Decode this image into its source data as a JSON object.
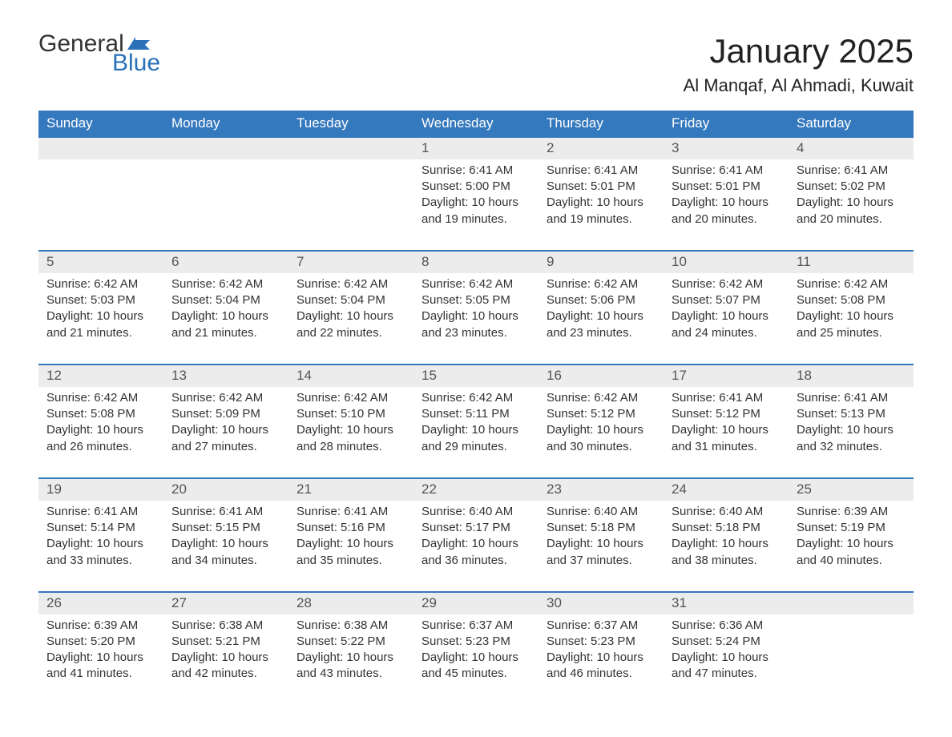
{
  "logo": {
    "word1": "General",
    "word2": "Blue",
    "accent_color": "#2a71b8"
  },
  "title": "January 2025",
  "location": "Al Manqaf, Al Ahmadi, Kuwait",
  "colors": {
    "header_bg": "#3478bd",
    "header_text": "#ffffff",
    "row_stripe": "#ececec",
    "row_border": "#3478bd",
    "body_text": "#333333",
    "background": "#ffffff"
  },
  "typography": {
    "title_fontsize": 42,
    "location_fontsize": 22,
    "dayheader_fontsize": 17,
    "daynum_fontsize": 17,
    "cell_fontsize": 15
  },
  "day_headers": [
    "Sunday",
    "Monday",
    "Tuesday",
    "Wednesday",
    "Thursday",
    "Friday",
    "Saturday"
  ],
  "weeks": [
    [
      null,
      null,
      null,
      {
        "n": "1",
        "sr": "6:41 AM",
        "ss": "5:00 PM",
        "dl": "10 hours and 19 minutes."
      },
      {
        "n": "2",
        "sr": "6:41 AM",
        "ss": "5:01 PM",
        "dl": "10 hours and 19 minutes."
      },
      {
        "n": "3",
        "sr": "6:41 AM",
        "ss": "5:01 PM",
        "dl": "10 hours and 20 minutes."
      },
      {
        "n": "4",
        "sr": "6:41 AM",
        "ss": "5:02 PM",
        "dl": "10 hours and 20 minutes."
      }
    ],
    [
      {
        "n": "5",
        "sr": "6:42 AM",
        "ss": "5:03 PM",
        "dl": "10 hours and 21 minutes."
      },
      {
        "n": "6",
        "sr": "6:42 AM",
        "ss": "5:04 PM",
        "dl": "10 hours and 21 minutes."
      },
      {
        "n": "7",
        "sr": "6:42 AM",
        "ss": "5:04 PM",
        "dl": "10 hours and 22 minutes."
      },
      {
        "n": "8",
        "sr": "6:42 AM",
        "ss": "5:05 PM",
        "dl": "10 hours and 23 minutes."
      },
      {
        "n": "9",
        "sr": "6:42 AM",
        "ss": "5:06 PM",
        "dl": "10 hours and 23 minutes."
      },
      {
        "n": "10",
        "sr": "6:42 AM",
        "ss": "5:07 PM",
        "dl": "10 hours and 24 minutes."
      },
      {
        "n": "11",
        "sr": "6:42 AM",
        "ss": "5:08 PM",
        "dl": "10 hours and 25 minutes."
      }
    ],
    [
      {
        "n": "12",
        "sr": "6:42 AM",
        "ss": "5:08 PM",
        "dl": "10 hours and 26 minutes."
      },
      {
        "n": "13",
        "sr": "6:42 AM",
        "ss": "5:09 PM",
        "dl": "10 hours and 27 minutes."
      },
      {
        "n": "14",
        "sr": "6:42 AM",
        "ss": "5:10 PM",
        "dl": "10 hours and 28 minutes."
      },
      {
        "n": "15",
        "sr": "6:42 AM",
        "ss": "5:11 PM",
        "dl": "10 hours and 29 minutes."
      },
      {
        "n": "16",
        "sr": "6:42 AM",
        "ss": "5:12 PM",
        "dl": "10 hours and 30 minutes."
      },
      {
        "n": "17",
        "sr": "6:41 AM",
        "ss": "5:12 PM",
        "dl": "10 hours and 31 minutes."
      },
      {
        "n": "18",
        "sr": "6:41 AM",
        "ss": "5:13 PM",
        "dl": "10 hours and 32 minutes."
      }
    ],
    [
      {
        "n": "19",
        "sr": "6:41 AM",
        "ss": "5:14 PM",
        "dl": "10 hours and 33 minutes."
      },
      {
        "n": "20",
        "sr": "6:41 AM",
        "ss": "5:15 PM",
        "dl": "10 hours and 34 minutes."
      },
      {
        "n": "21",
        "sr": "6:41 AM",
        "ss": "5:16 PM",
        "dl": "10 hours and 35 minutes."
      },
      {
        "n": "22",
        "sr": "6:40 AM",
        "ss": "5:17 PM",
        "dl": "10 hours and 36 minutes."
      },
      {
        "n": "23",
        "sr": "6:40 AM",
        "ss": "5:18 PM",
        "dl": "10 hours and 37 minutes."
      },
      {
        "n": "24",
        "sr": "6:40 AM",
        "ss": "5:18 PM",
        "dl": "10 hours and 38 minutes."
      },
      {
        "n": "25",
        "sr": "6:39 AM",
        "ss": "5:19 PM",
        "dl": "10 hours and 40 minutes."
      }
    ],
    [
      {
        "n": "26",
        "sr": "6:39 AM",
        "ss": "5:20 PM",
        "dl": "10 hours and 41 minutes."
      },
      {
        "n": "27",
        "sr": "6:38 AM",
        "ss": "5:21 PM",
        "dl": "10 hours and 42 minutes."
      },
      {
        "n": "28",
        "sr": "6:38 AM",
        "ss": "5:22 PM",
        "dl": "10 hours and 43 minutes."
      },
      {
        "n": "29",
        "sr": "6:37 AM",
        "ss": "5:23 PM",
        "dl": "10 hours and 45 minutes."
      },
      {
        "n": "30",
        "sr": "6:37 AM",
        "ss": "5:23 PM",
        "dl": "10 hours and 46 minutes."
      },
      {
        "n": "31",
        "sr": "6:36 AM",
        "ss": "5:24 PM",
        "dl": "10 hours and 47 minutes."
      },
      null
    ]
  ],
  "labels": {
    "sunrise": "Sunrise:",
    "sunset": "Sunset:",
    "daylight": "Daylight:"
  }
}
